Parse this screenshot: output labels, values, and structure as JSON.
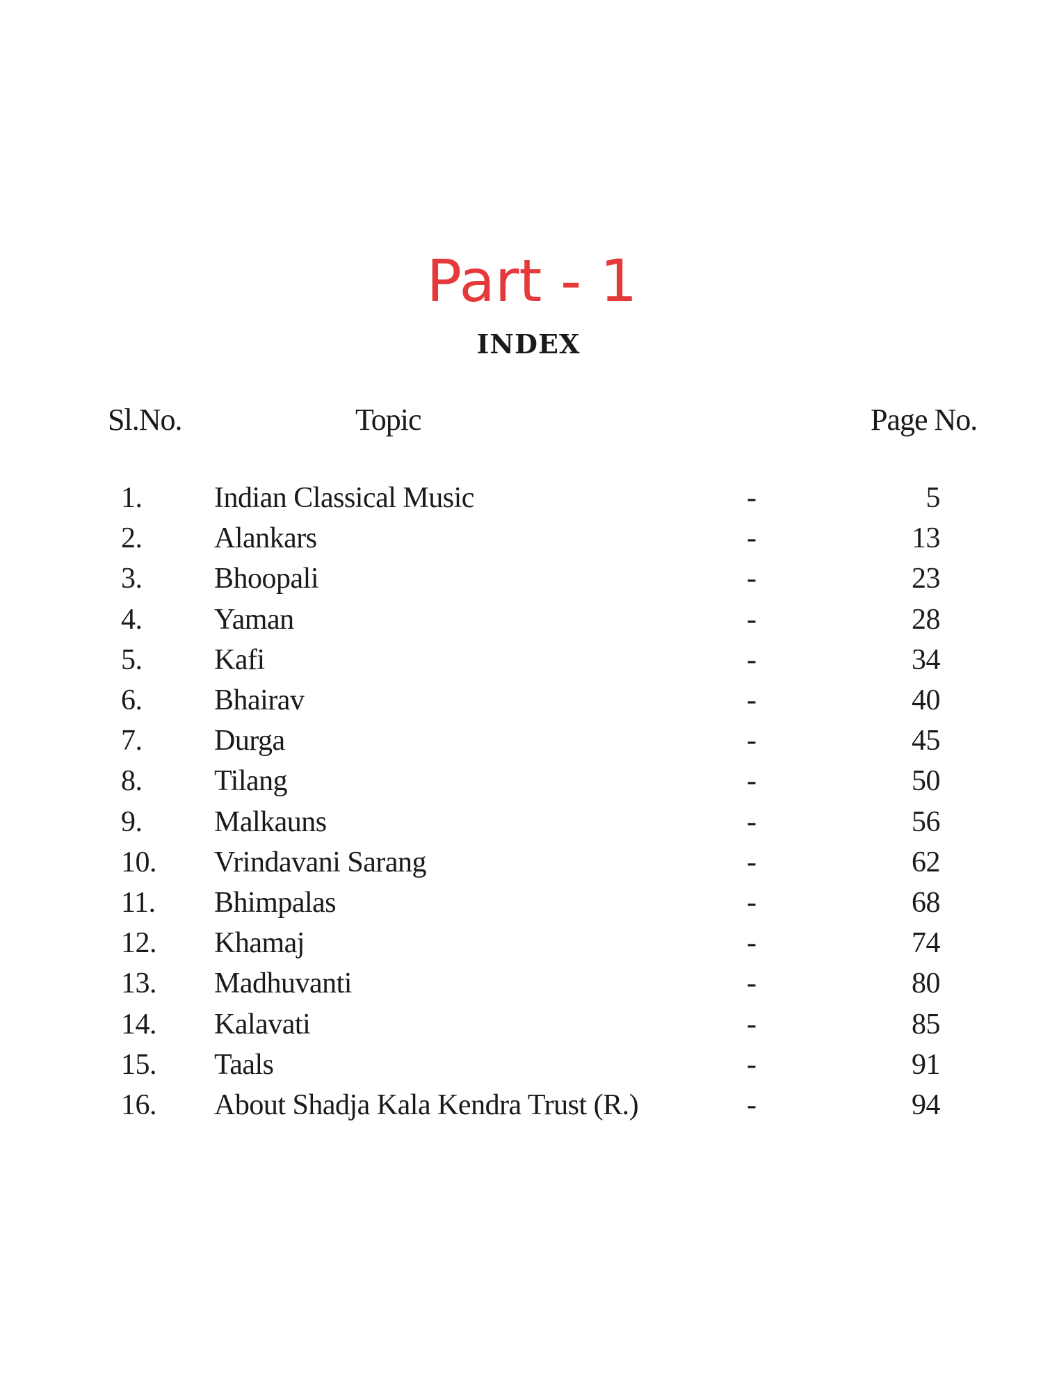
{
  "title": "Part - 1",
  "subtitle": "INDEX",
  "headers": {
    "sl_no": "Sl.No.",
    "topic": "Topic",
    "page_no": "Page No."
  },
  "accent_color": "#e5393b",
  "rows": [
    {
      "no": "1.",
      "topic": "Indian Classical Music",
      "sep": "-",
      "page": "5"
    },
    {
      "no": "2.",
      "topic": "Alankars",
      "sep": "-",
      "page": "13"
    },
    {
      "no": "3.",
      "topic": "Bhoopali",
      "sep": "-",
      "page": "23"
    },
    {
      "no": "4.",
      "topic": "Yaman",
      "sep": "-",
      "page": "28"
    },
    {
      "no": "5.",
      "topic": "Kafi",
      "sep": "-",
      "page": "34"
    },
    {
      "no": "6.",
      "topic": "Bhairav",
      "sep": "-",
      "page": "40"
    },
    {
      "no": "7.",
      "topic": "Durga",
      "sep": "-",
      "page": "45"
    },
    {
      "no": "8.",
      "topic": "Tilang",
      "sep": "-",
      "page": "50"
    },
    {
      "no": "9.",
      "topic": "Malkauns",
      "sep": "-",
      "page": "56"
    },
    {
      "no": "10.",
      "topic": "Vrindavani Sarang",
      "sep": "-",
      "page": "62"
    },
    {
      "no": "11.",
      "topic": "Bhimpalas",
      "sep": "-",
      "page": "68"
    },
    {
      "no": "12.",
      "topic": "Khamaj",
      "sep": "-",
      "page": "74"
    },
    {
      "no": "13.",
      "topic": "Madhuvanti",
      "sep": "-",
      "page": "80"
    },
    {
      "no": "14.",
      "topic": "Kalavati",
      "sep": "-",
      "page": "85"
    },
    {
      "no": "15.",
      "topic": "Taals",
      "sep": "-",
      "page": "91"
    },
    {
      "no": "16.",
      "topic": "About Shadja Kala Kendra Trust (R.)",
      "sep": "-",
      "page": "94"
    }
  ]
}
